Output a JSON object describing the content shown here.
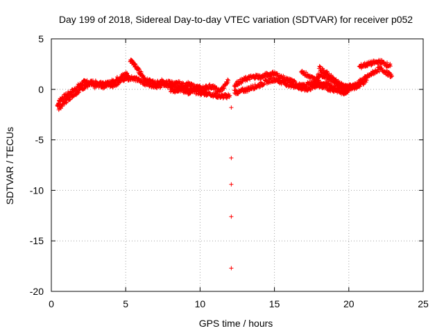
{
  "chart_data": {
    "type": "scatter",
    "title": "Day 199 of 2018, Sidereal Day-to-day VTEC variation (SDTVAR) for receiver p052",
    "xlabel": "GPS time / hours",
    "ylabel": "SDTVAR / TECUs",
    "xlim": [
      0,
      25
    ],
    "ylim": [
      -20,
      5
    ],
    "xticks": [
      0,
      5,
      10,
      15,
      20,
      25
    ],
    "yticks": [
      -20,
      -15,
      -10,
      -5,
      0,
      5
    ],
    "xtick_labels": [
      "0",
      "5",
      "10",
      "15",
      "20",
      "25"
    ],
    "ytick_labels": [
      "-20",
      "-15",
      "-10",
      "-5",
      "0",
      "5"
    ],
    "grid": true,
    "marker": "+",
    "color": "#ff0000",
    "series": [
      {
        "name": "SDTVAR",
        "tracks": [
          [
            [
              0.4,
              -1.6
            ],
            [
              0.6,
              -1.0
            ],
            [
              0.9,
              -0.7
            ],
            [
              1.2,
              -0.4
            ],
            [
              1.5,
              -0.1
            ],
            [
              1.8,
              0.3
            ],
            [
              2.1,
              0.6
            ],
            [
              2.4,
              0.9
            ]
          ],
          [
            [
              0.5,
              -1.9
            ],
            [
              0.8,
              -1.4
            ],
            [
              1.1,
              -1.0
            ],
            [
              1.4,
              -0.6
            ],
            [
              1.7,
              -0.3
            ],
            [
              2.0,
              0.1
            ],
            [
              2.3,
              0.3
            ],
            [
              2.6,
              0.5
            ],
            [
              2.9,
              0.3
            ],
            [
              3.2,
              0.4
            ],
            [
              3.5,
              0.3
            ],
            [
              3.8,
              0.5
            ],
            [
              4.1,
              0.4
            ],
            [
              4.4,
              0.6
            ],
            [
              4.7,
              0.9
            ],
            [
              5.0,
              1.1
            ],
            [
              5.2,
              1.3
            ]
          ],
          [
            [
              2.2,
              0.4
            ],
            [
              2.5,
              0.6
            ],
            [
              2.8,
              0.7
            ],
            [
              3.1,
              0.6
            ],
            [
              3.4,
              0.7
            ],
            [
              3.7,
              0.5
            ],
            [
              4.0,
              0.7
            ],
            [
              4.3,
              0.9
            ],
            [
              4.6,
              1.2
            ],
            [
              4.9,
              1.4
            ],
            [
              5.1,
              1.6
            ]
          ],
          [
            [
              5.1,
              1.0
            ],
            [
              5.4,
              1.2
            ],
            [
              5.7,
              1.0
            ],
            [
              6.0,
              0.8
            ],
            [
              6.3,
              0.6
            ],
            [
              6.6,
              0.5
            ],
            [
              6.9,
              0.4
            ],
            [
              7.2,
              0.3
            ],
            [
              7.5,
              0.5
            ],
            [
              7.8,
              0.4
            ],
            [
              8.1,
              0.3
            ],
            [
              8.4,
              0.2
            ],
            [
              8.7,
              0.3
            ],
            [
              9.0,
              0.2
            ],
            [
              9.3,
              0.0
            ],
            [
              9.6,
              -0.2
            ],
            [
              9.9,
              -0.3
            ],
            [
              10.2,
              -0.4
            ],
            [
              10.5,
              -0.4
            ],
            [
              10.8,
              -0.5
            ],
            [
              11.1,
              -0.6
            ],
            [
              11.4,
              -0.7
            ],
            [
              11.7,
              -0.7
            ],
            [
              12.0,
              -0.6
            ]
          ],
          [
            [
              5.3,
              2.9
            ],
            [
              5.5,
              2.6
            ],
            [
              5.7,
              2.2
            ],
            [
              5.9,
              1.8
            ],
            [
              6.1,
              1.4
            ],
            [
              6.3,
              1.0
            ],
            [
              6.5,
              0.8
            ],
            [
              6.8,
              0.7
            ],
            [
              7.1,
              0.6
            ],
            [
              7.4,
              0.8
            ],
            [
              7.7,
              0.6
            ],
            [
              8.0,
              0.7
            ],
            [
              8.3,
              0.5
            ],
            [
              8.6,
              0.6
            ],
            [
              8.9,
              0.4
            ],
            [
              9.2,
              0.5
            ],
            [
              9.5,
              0.3
            ],
            [
              9.8,
              0.2
            ],
            [
              10.1,
              0.1
            ],
            [
              10.4,
              0.2
            ],
            [
              10.7,
              0.3
            ],
            [
              11.0,
              0.1
            ],
            [
              11.3,
              -0.2
            ],
            [
              11.6,
              0.2
            ],
            [
              11.9,
              0.9
            ]
          ],
          [
            [
              8.0,
              0.0
            ],
            [
              8.3,
              -0.1
            ],
            [
              8.6,
              0.0
            ],
            [
              8.9,
              -0.2
            ],
            [
              9.2,
              -0.3
            ],
            [
              9.5,
              -0.1
            ],
            [
              9.8,
              0.1
            ],
            [
              10.1,
              -0.2
            ],
            [
              10.4,
              -0.3
            ]
          ],
          [
            [
              12.3,
              -0.2
            ],
            [
              12.6,
              -0.3
            ],
            [
              12.9,
              -0.1
            ],
            [
              13.2,
              0.0
            ],
            [
              13.5,
              0.2
            ],
            [
              13.8,
              0.3
            ],
            [
              14.1,
              0.5
            ],
            [
              14.4,
              0.7
            ],
            [
              14.7,
              0.9
            ],
            [
              15.0,
              1.0
            ],
            [
              15.3,
              0.8
            ],
            [
              15.6,
              0.7
            ],
            [
              15.9,
              0.5
            ],
            [
              16.2,
              0.4
            ],
            [
              16.5,
              0.3
            ],
            [
              16.8,
              0.1
            ],
            [
              17.1,
              0.0
            ],
            [
              17.4,
              0.1
            ],
            [
              17.7,
              0.3
            ],
            [
              18.0,
              0.5
            ],
            [
              18.3,
              0.6
            ],
            [
              18.6,
              0.5
            ],
            [
              18.9,
              0.3
            ],
            [
              19.2,
              0.1
            ],
            [
              19.5,
              0.0
            ],
            [
              19.8,
              -0.2
            ],
            [
              20.0,
              -0.1
            ]
          ],
          [
            [
              12.3,
              0.4
            ],
            [
              12.6,
              0.7
            ],
            [
              12.9,
              0.9
            ],
            [
              13.2,
              1.1
            ],
            [
              13.5,
              1.2
            ],
            [
              13.8,
              1.3
            ],
            [
              14.1,
              1.2
            ],
            [
              14.4,
              1.4
            ],
            [
              14.7,
              1.5
            ],
            [
              15.0,
              1.6
            ],
            [
              15.3,
              1.3
            ],
            [
              15.6,
              1.1
            ],
            [
              15.9,
              0.9
            ],
            [
              16.2,
              0.8
            ],
            [
              16.5,
              0.5
            ],
            [
              16.8,
              0.3
            ],
            [
              17.1,
              0.4
            ],
            [
              17.4,
              0.6
            ],
            [
              17.7,
              0.7
            ],
            [
              18.0,
              0.4
            ],
            [
              18.3,
              0.2
            ],
            [
              18.6,
              0.1
            ],
            [
              18.9,
              0.0
            ],
            [
              19.2,
              -0.1
            ],
            [
              19.5,
              -0.3
            ],
            [
              19.8,
              -0.3
            ]
          ],
          [
            [
              16.8,
              1.9
            ],
            [
              17.1,
              1.5
            ],
            [
              17.4,
              1.2
            ],
            [
              17.7,
              1.0
            ],
            [
              18.0,
              0.9
            ]
          ],
          [
            [
              17.8,
              1.2
            ],
            [
              18.1,
              1.5
            ],
            [
              18.4,
              1.3
            ],
            [
              18.7,
              1.1
            ],
            [
              19.0,
              0.8
            ],
            [
              19.3,
              0.6
            ],
            [
              19.6,
              0.4
            ],
            [
              19.9,
              0.2
            ],
            [
              20.2,
              0.3
            ],
            [
              20.5,
              0.5
            ],
            [
              20.8,
              0.8
            ],
            [
              21.1,
              1.1
            ],
            [
              21.4,
              1.4
            ],
            [
              21.7,
              1.7
            ],
            [
              22.0,
              2.0
            ],
            [
              22.3,
              1.9
            ],
            [
              22.6,
              1.6
            ],
            [
              22.9,
              1.3
            ]
          ],
          [
            [
              18.0,
              2.1
            ],
            [
              18.3,
              1.8
            ],
            [
              18.6,
              1.5
            ],
            [
              18.9,
              1.1
            ],
            [
              19.2,
              0.7
            ],
            [
              19.5,
              0.4
            ],
            [
              19.8,
              0.2
            ],
            [
              20.1,
              0.3
            ],
            [
              20.4,
              0.2
            ],
            [
              20.7,
              0.4
            ]
          ],
          [
            [
              20.0,
              0.1
            ],
            [
              20.3,
              0.2
            ],
            [
              20.6,
              0.3
            ],
            [
              20.9,
              0.6
            ],
            [
              21.2,
              0.9
            ]
          ],
          [
            [
              20.7,
              2.2
            ],
            [
              21.0,
              2.4
            ],
            [
              21.3,
              2.5
            ],
            [
              21.6,
              2.6
            ],
            [
              21.9,
              2.7
            ],
            [
              22.2,
              2.7
            ],
            [
              22.5,
              2.5
            ],
            [
              22.8,
              2.3
            ]
          ]
        ],
        "outliers": [
          [
            12.1,
            -1.8
          ],
          [
            12.1,
            -6.8
          ],
          [
            12.1,
            -9.4
          ],
          [
            12.1,
            -12.6
          ],
          [
            12.1,
            -17.7
          ]
        ]
      }
    ]
  }
}
